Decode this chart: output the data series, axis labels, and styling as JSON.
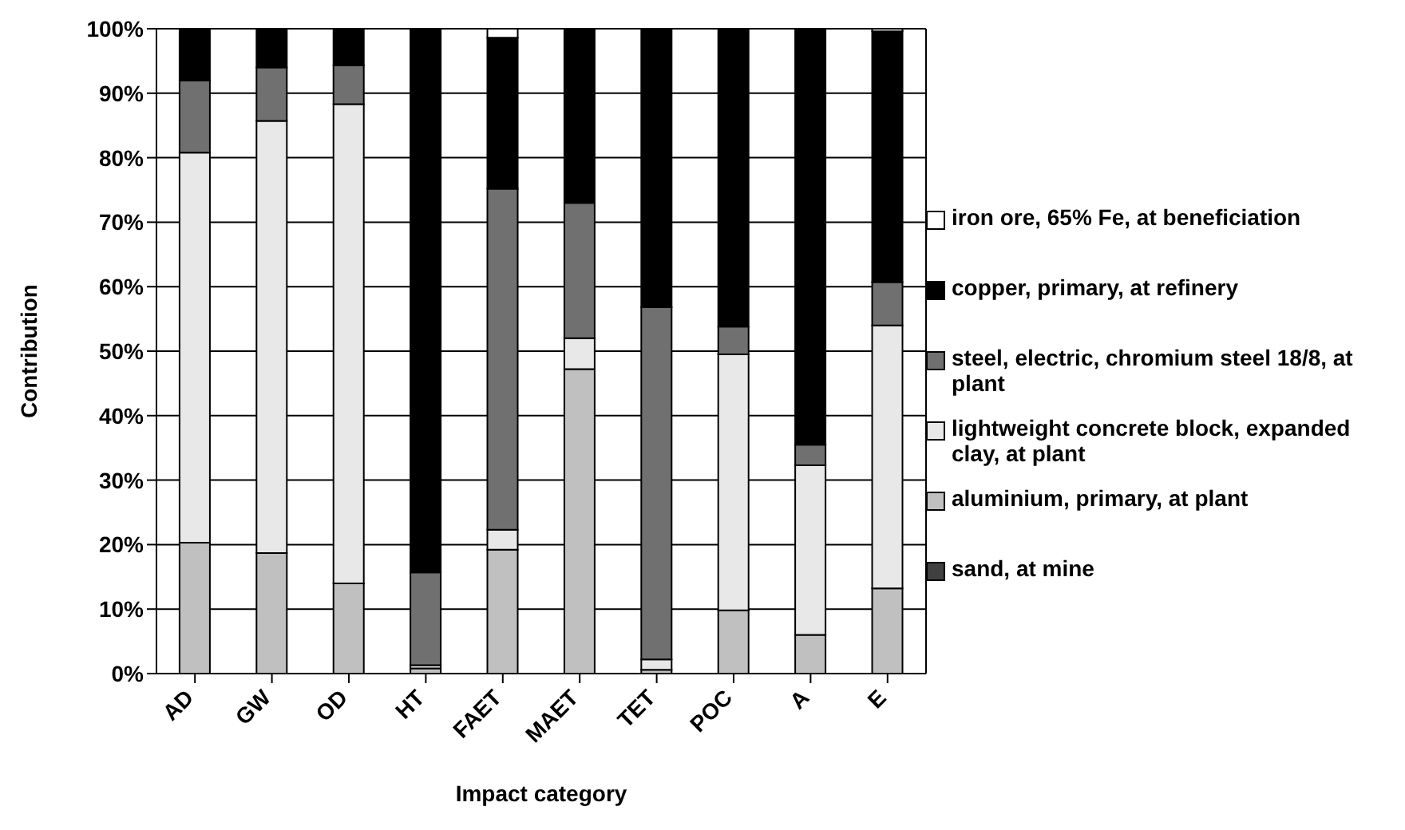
{
  "chart_data": {
    "type": "bar",
    "stacked": true,
    "xlabel": "Impact category",
    "ylabel": "Contribution",
    "categories": [
      "AD",
      "GW",
      "OD",
      "HT",
      "FAET",
      "MAET",
      "TET",
      "POC",
      "A",
      "E"
    ],
    "series": [
      {
        "name": "sand, at mine",
        "color": "#404040",
        "values": [
          0,
          0,
          0,
          0,
          0,
          0,
          0,
          0,
          0,
          0
        ]
      },
      {
        "name": "aluminium, primary, at plant",
        "color": "#c0c0c0",
        "values": [
          20.3,
          18.7,
          14,
          0.8,
          19.2,
          47.2,
          0.6,
          9.8,
          6,
          13.2
        ]
      },
      {
        "name": "lightweight concrete block, expanded clay, at plant",
        "color": "#e8e8e8",
        "values": [
          60.5,
          67,
          74.3,
          0.5,
          3.1,
          4.8,
          1.6,
          39.7,
          26.3,
          40.8
        ]
      },
      {
        "name": "steel, electric, chromium steel 18/8, at plant",
        "color": "#707070",
        "values": [
          11.2,
          8.3,
          6,
          14.4,
          52.9,
          21,
          54.6,
          4.3,
          3.2,
          6.7
        ]
      },
      {
        "name": "copper, primary, at refinery",
        "color": "#000000",
        "values": [
          8,
          6,
          5.7,
          84.3,
          23.4,
          27,
          43.2,
          46.2,
          64.5,
          38.9
        ]
      },
      {
        "name": "iron ore, 65% Fe, at beneficiation",
        "color": "#ffffff",
        "values": [
          0,
          0,
          0,
          0,
          1.4,
          0,
          0,
          0,
          0,
          0.4
        ]
      }
    ],
    "ylim": [
      0,
      100
    ],
    "yticks": [
      {
        "value": 0,
        "label": "0%"
      },
      {
        "value": 10,
        "label": "10%"
      },
      {
        "value": 20,
        "label": "20%"
      },
      {
        "value": 30,
        "label": "30%"
      },
      {
        "value": 40,
        "label": "40%"
      },
      {
        "value": 50,
        "label": "50%"
      },
      {
        "value": 60,
        "label": "60%"
      },
      {
        "value": 70,
        "label": "70%"
      },
      {
        "value": 80,
        "label": "80%"
      },
      {
        "value": 90,
        "label": "90%"
      },
      {
        "value": 100,
        "label": "100%"
      }
    ],
    "grid": true,
    "legend": "right"
  }
}
